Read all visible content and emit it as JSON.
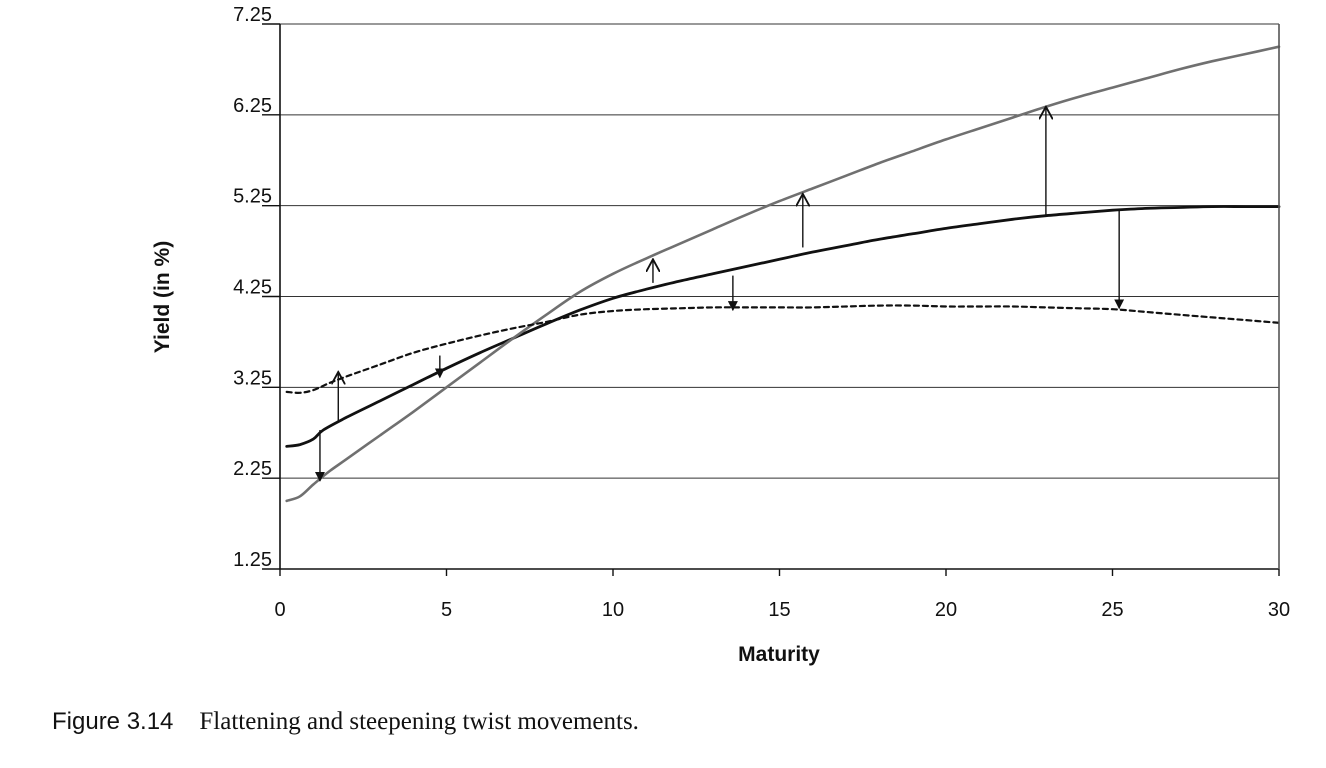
{
  "chart_data": {
    "type": "line",
    "xlabel": "Maturity",
    "ylabel": "Yield (in %)",
    "xlim": [
      0,
      30
    ],
    "ylim": [
      1.25,
      7.25
    ],
    "xticks": [
      0,
      5,
      10,
      15,
      20,
      25,
      30
    ],
    "yticks": [
      1.25,
      2.25,
      3.25,
      4.25,
      5.25,
      6.25,
      7.25
    ],
    "xtick_labels": [
      "0",
      "5",
      "10",
      "15",
      "20",
      "25",
      "30"
    ],
    "ytick_labels": [
      "1.25",
      "2.25",
      "3.25",
      "4.25",
      "5.25",
      "6.25",
      "7.25"
    ],
    "grid": "horizontal",
    "legend": "none",
    "series": [
      {
        "style": "solid-black",
        "color": "#111111",
        "x": [
          0.2,
          0.6,
          1.0,
          1.3,
          2,
          3,
          4,
          5,
          6,
          7,
          8,
          9,
          10,
          11,
          12,
          13,
          14,
          15,
          16,
          17,
          18,
          19,
          20,
          21,
          22,
          23,
          24,
          25,
          26,
          27,
          28,
          29,
          30
        ],
        "y": [
          2.6,
          2.62,
          2.68,
          2.78,
          2.92,
          3.1,
          3.28,
          3.46,
          3.63,
          3.79,
          3.95,
          4.1,
          4.23,
          4.33,
          4.42,
          4.5,
          4.58,
          4.66,
          4.74,
          4.81,
          4.88,
          4.94,
          5.0,
          5.05,
          5.1,
          5.14,
          5.17,
          5.2,
          5.22,
          5.23,
          5.24,
          5.24,
          5.24
        ]
      },
      {
        "style": "solid-gray",
        "color": "#707070",
        "x": [
          0.2,
          0.6,
          1.0,
          1.5,
          2,
          3,
          4,
          5,
          6,
          7,
          8,
          9,
          10,
          11,
          12,
          13,
          14,
          15,
          16,
          17,
          18,
          19,
          20,
          21,
          22,
          23,
          24,
          25,
          26,
          27,
          28,
          29,
          30
        ],
        "y": [
          2.0,
          2.05,
          2.18,
          2.33,
          2.46,
          2.72,
          2.98,
          3.25,
          3.52,
          3.79,
          4.05,
          4.3,
          4.5,
          4.67,
          4.83,
          4.99,
          5.15,
          5.3,
          5.44,
          5.58,
          5.72,
          5.85,
          5.98,
          6.1,
          6.22,
          6.34,
          6.45,
          6.55,
          6.65,
          6.75,
          6.84,
          6.92,
          7.0
        ]
      },
      {
        "style": "dashed-black",
        "color": "#111111",
        "x": [
          0.2,
          0.6,
          1.0,
          1.5,
          2,
          3,
          4,
          5,
          6,
          7,
          8,
          9,
          10,
          11,
          12,
          13,
          14,
          15,
          16,
          17,
          18,
          19,
          20,
          21,
          22,
          23,
          24,
          25,
          26,
          27,
          28,
          29,
          30
        ],
        "y": [
          3.2,
          3.19,
          3.22,
          3.3,
          3.37,
          3.5,
          3.63,
          3.73,
          3.82,
          3.9,
          3.97,
          4.05,
          4.09,
          4.11,
          4.12,
          4.13,
          4.13,
          4.13,
          4.13,
          4.14,
          4.15,
          4.15,
          4.14,
          4.14,
          4.14,
          4.13,
          4.12,
          4.11,
          4.08,
          4.05,
          4.02,
          3.99,
          3.96
        ]
      }
    ],
    "annotations": [
      {
        "type": "arrow",
        "x": 1.2,
        "from": 2.78,
        "to": 2.22,
        "head": "filled"
      },
      {
        "type": "arrow",
        "x": 1.75,
        "from": 2.88,
        "to": 3.42,
        "head": "open"
      },
      {
        "type": "arrow",
        "x": 4.8,
        "from": 3.6,
        "to": 3.36,
        "head": "filled"
      },
      {
        "type": "arrow",
        "x": 11.2,
        "from": 4.4,
        "to": 4.66,
        "head": "open"
      },
      {
        "type": "arrow",
        "x": 13.6,
        "from": 4.48,
        "to": 4.1,
        "head": "filled"
      },
      {
        "type": "arrow",
        "x": 15.7,
        "from": 4.79,
        "to": 5.38,
        "head": "open"
      },
      {
        "type": "arrow",
        "x": 23.0,
        "from": 5.15,
        "to": 6.34,
        "head": "open"
      },
      {
        "type": "arrow",
        "x": 25.2,
        "from": 5.2,
        "to": 4.12,
        "head": "filled"
      }
    ]
  },
  "caption": {
    "figure_number": "Figure 3.14",
    "text": "Flattening and steepening twist movements."
  }
}
